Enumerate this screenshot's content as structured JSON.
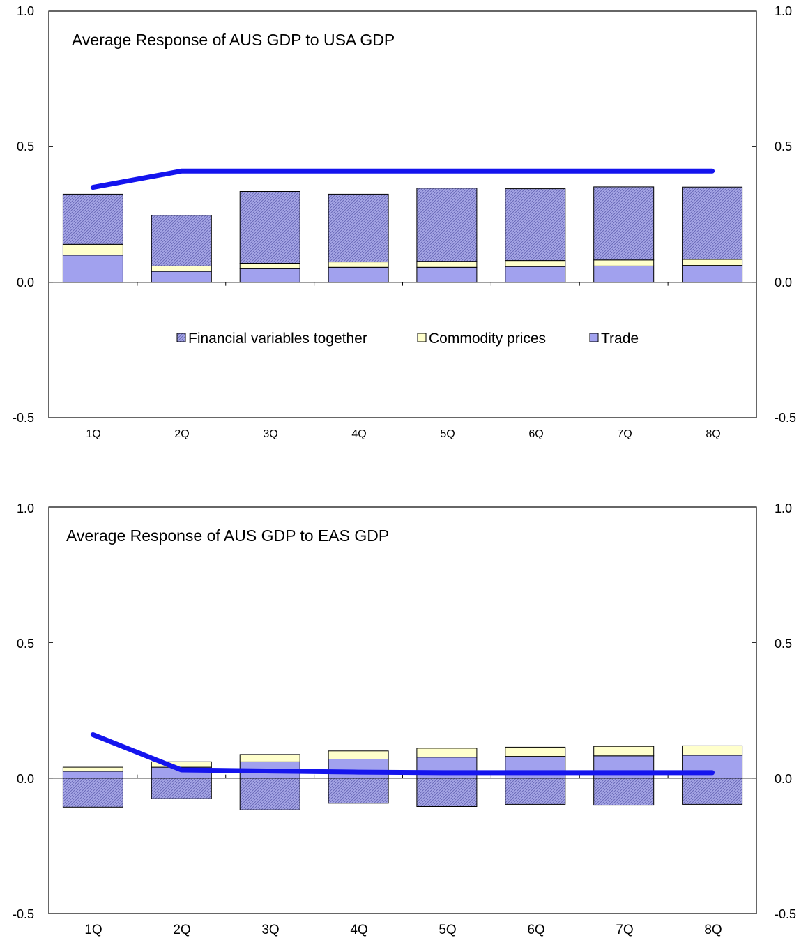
{
  "colors": {
    "trade": "#a1a1ee",
    "commodity": "#ffffcc",
    "financial_base": "#a9a9e8",
    "financial_hatch": "#6a6ab8",
    "line": "#1414ee",
    "frame": "#000000"
  },
  "chart_data": [
    {
      "type": "bar",
      "stacked": true,
      "title": "Average Response of AUS GDP to USA GDP",
      "categories": [
        "1Q",
        "2Q",
        "3Q",
        "4Q",
        "5Q",
        "6Q",
        "7Q",
        "8Q"
      ],
      "ylim": [
        -0.5,
        1.0
      ],
      "yticks": [
        "1.0",
        "0.5",
        "0.0",
        "-0.5"
      ],
      "ytick_values": [
        1.0,
        0.5,
        0.0,
        -0.5
      ],
      "dual_y_axis": true,
      "grid": false,
      "legend_position": "center",
      "series": [
        {
          "name": "Trade",
          "kind": "bar",
          "values": [
            0.1,
            0.04,
            0.05,
            0.055,
            0.055,
            0.058,
            0.06,
            0.062
          ]
        },
        {
          "name": "Commodity prices",
          "kind": "bar",
          "values": [
            0.04,
            0.02,
            0.02,
            0.02,
            0.022,
            0.022,
            0.022,
            0.022
          ]
        },
        {
          "name": "Financial variables together",
          "kind": "bar",
          "values": [
            0.185,
            0.187,
            0.265,
            0.25,
            0.27,
            0.265,
            0.27,
            0.267
          ]
        },
        {
          "kind": "line",
          "values": [
            0.35,
            0.41,
            0.41,
            0.41,
            0.41,
            0.41,
            0.41,
            0.41
          ]
        }
      ],
      "legend": [
        "Financial variables together",
        "Commodity prices",
        "Trade"
      ]
    },
    {
      "type": "bar",
      "stacked": true,
      "title": "Average Response of AUS GDP to EAS GDP",
      "categories": [
        "1Q",
        "2Q",
        "3Q",
        "4Q",
        "5Q",
        "6Q",
        "7Q",
        "8Q"
      ],
      "ylim": [
        -0.5,
        1.0
      ],
      "yticks": [
        "1.0",
        "0.5",
        "0.0",
        "-0.5"
      ],
      "ytick_values": [
        1.0,
        0.5,
        0.0,
        -0.5
      ],
      "dual_y_axis": true,
      "grid": false,
      "series": [
        {
          "name": "Trade",
          "kind": "bar",
          "values": [
            0.025,
            0.04,
            0.06,
            0.07,
            0.077,
            0.08,
            0.082,
            0.084
          ]
        },
        {
          "name": "Commodity prices",
          "kind": "bar",
          "values": [
            0.015,
            0.02,
            0.027,
            0.03,
            0.033,
            0.034,
            0.035,
            0.035
          ]
        },
        {
          "name": "Financial variables together",
          "kind": "bar",
          "values": [
            -0.107,
            -0.076,
            -0.117,
            -0.093,
            -0.105,
            -0.097,
            -0.1,
            -0.097
          ]
        },
        {
          "kind": "line",
          "values": [
            0.16,
            0.03,
            0.026,
            0.022,
            0.02,
            0.02,
            0.02,
            0.02
          ]
        }
      ]
    }
  ]
}
